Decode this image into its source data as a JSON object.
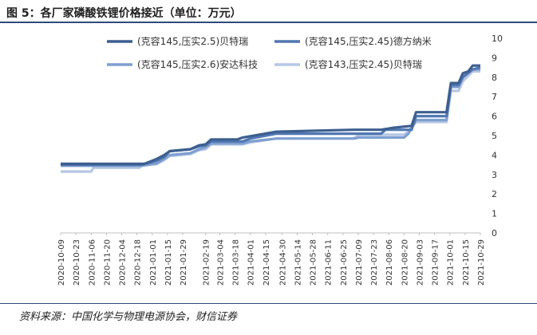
{
  "header": {
    "title": "图 5：各厂家磷酸铁锂价格接近（单位：万元）"
  },
  "footer": {
    "source": "资料来源：中国化学与物理电源协会，财信证券"
  },
  "chart_data": {
    "type": "line",
    "title": "图 5：各厂家磷酸铁锂价格接近（单位：万元）",
    "xlabel": "",
    "ylabel": "",
    "ylim": [
      0,
      10
    ],
    "yticks": [
      0,
      1,
      2,
      3,
      4,
      5,
      6,
      7,
      8,
      9,
      10
    ],
    "y_axis_side": "right",
    "grid": false,
    "legend_position": "top",
    "x_tick_labels": [
      "2020-10-09",
      "2020-10-23",
      "2020-11-06",
      "2020-11-20",
      "2020-12-04",
      "2020-12-18",
      "2021-01-01",
      "2021-01-15",
      "2021-01-29",
      "2021-02-19",
      "2021-03-04",
      "2021-03-18",
      "2021-04-01",
      "2021-04-15",
      "2021-04-30",
      "2021-05-14",
      "2021-05-28",
      "2021-06-11",
      "2021-06-25",
      "2021-07-09",
      "2021-07-23",
      "2021-08-06",
      "2021-08-20",
      "2021-09-03",
      "2021-09-17",
      "2021-10-01",
      "2021-10-15",
      "2021-10-29"
    ],
    "series": [
      {
        "name": "(克容145,压实2.5)贝特瑞",
        "color": "#3d5f8f",
        "points": [
          [
            "2020-10-09",
            3.55
          ],
          [
            "2020-12-25",
            3.55
          ],
          [
            "2021-01-05",
            3.8
          ],
          [
            "2021-01-12",
            4.0
          ],
          [
            "2021-01-17",
            4.2
          ],
          [
            "2021-02-05",
            4.3
          ],
          [
            "2021-02-13",
            4.5
          ],
          [
            "2021-02-19",
            4.55
          ],
          [
            "2021-02-24",
            4.8
          ],
          [
            "2021-03-20",
            4.8
          ],
          [
            "2021-03-25",
            4.9
          ],
          [
            "2021-04-25",
            5.2
          ],
          [
            "2021-07-05",
            5.3
          ],
          [
            "2021-07-30",
            5.3
          ],
          [
            "2021-08-10",
            5.4
          ],
          [
            "2021-08-27",
            5.5
          ],
          [
            "2021-08-31",
            6.2
          ],
          [
            "2021-09-28",
            6.2
          ],
          [
            "2021-10-02",
            7.7
          ],
          [
            "2021-10-09",
            7.7
          ],
          [
            "2021-10-13",
            8.2
          ],
          [
            "2021-10-18",
            8.3
          ],
          [
            "2021-10-22",
            8.6
          ],
          [
            "2021-10-29",
            8.6
          ]
        ]
      },
      {
        "name": "(克容145,压实2.45)德方纳米",
        "color": "#5077b2",
        "points": [
          [
            "2020-10-09",
            3.5
          ],
          [
            "2020-12-22",
            3.5
          ],
          [
            "2021-01-05",
            3.7
          ],
          [
            "2021-01-12",
            3.9
          ],
          [
            "2021-01-17",
            4.2
          ],
          [
            "2021-02-05",
            4.3
          ],
          [
            "2021-02-13",
            4.45
          ],
          [
            "2021-02-19",
            4.5
          ],
          [
            "2021-02-24",
            4.7
          ],
          [
            "2021-03-25",
            4.7
          ],
          [
            "2021-04-01",
            4.85
          ],
          [
            "2021-04-25",
            5.1
          ],
          [
            "2021-07-30",
            5.1
          ],
          [
            "2021-08-03",
            5.3
          ],
          [
            "2021-08-27",
            5.3
          ],
          [
            "2021-08-31",
            6.0
          ],
          [
            "2021-09-28",
            6.0
          ],
          [
            "2021-10-02",
            7.6
          ],
          [
            "2021-10-09",
            7.6
          ],
          [
            "2021-10-13",
            8.0
          ],
          [
            "2021-10-22",
            8.4
          ],
          [
            "2021-10-29",
            8.5
          ]
        ]
      },
      {
        "name": "(克容145,压实2.6)安达科技",
        "color": "#7f9fd0",
        "points": [
          [
            "2020-10-09",
            3.45
          ],
          [
            "2020-12-22",
            3.45
          ],
          [
            "2021-01-05",
            3.55
          ],
          [
            "2021-01-12",
            3.8
          ],
          [
            "2021-01-17",
            4.0
          ],
          [
            "2021-02-05",
            4.1
          ],
          [
            "2021-02-13",
            4.3
          ],
          [
            "2021-02-19",
            4.4
          ],
          [
            "2021-02-24",
            4.6
          ],
          [
            "2021-03-25",
            4.6
          ],
          [
            "2021-04-01",
            4.7
          ],
          [
            "2021-04-25",
            4.85
          ],
          [
            "2021-07-05",
            4.85
          ],
          [
            "2021-07-10",
            4.9
          ],
          [
            "2021-08-20",
            4.9
          ],
          [
            "2021-08-24",
            5.1
          ],
          [
            "2021-08-31",
            5.8
          ],
          [
            "2021-09-28",
            5.8
          ],
          [
            "2021-10-02",
            7.5
          ],
          [
            "2021-10-09",
            7.5
          ],
          [
            "2021-10-13",
            8.0
          ],
          [
            "2021-10-22",
            8.4
          ],
          [
            "2021-10-29",
            8.4
          ]
        ]
      },
      {
        "name": "(克容143,压实2.45)贝特瑞",
        "color": "#b5c6e3",
        "points": [
          [
            "2020-10-09",
            3.15
          ],
          [
            "2020-11-06",
            3.15
          ],
          [
            "2020-11-08",
            3.35
          ],
          [
            "2020-12-20",
            3.35
          ],
          [
            "2020-12-25",
            3.55
          ],
          [
            "2021-01-05",
            3.55
          ],
          [
            "2021-01-12",
            3.75
          ],
          [
            "2021-01-17",
            3.95
          ],
          [
            "2021-02-05",
            4.05
          ],
          [
            "2021-02-13",
            4.25
          ],
          [
            "2021-02-19",
            4.3
          ],
          [
            "2021-02-24",
            4.55
          ],
          [
            "2021-03-25",
            4.55
          ],
          [
            "2021-04-01",
            4.65
          ],
          [
            "2021-04-25",
            4.85
          ],
          [
            "2021-07-05",
            4.85
          ],
          [
            "2021-07-10",
            5.05
          ],
          [
            "2021-08-20",
            5.05
          ],
          [
            "2021-08-24",
            5.2
          ],
          [
            "2021-08-31",
            5.7
          ],
          [
            "2021-09-28",
            5.7
          ],
          [
            "2021-10-02",
            7.3
          ],
          [
            "2021-10-09",
            7.3
          ],
          [
            "2021-10-13",
            7.8
          ],
          [
            "2021-10-22",
            8.3
          ],
          [
            "2021-10-29",
            8.3
          ]
        ]
      }
    ]
  }
}
